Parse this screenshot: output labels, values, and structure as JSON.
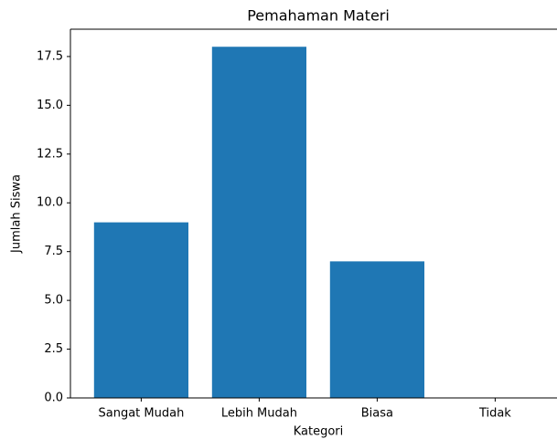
{
  "chart_data": {
    "type": "bar",
    "title": "Pemahaman Materi",
    "x_label": "Kategori",
    "y_label": "Jumlah Siswa",
    "categories": [
      "Sangat Mudah",
      "Lebih Mudah",
      "Biasa",
      "Tidak"
    ],
    "values": [
      9,
      18,
      7,
      0
    ],
    "color": "#1f77b4",
    "ylim": [
      0,
      18.9
    ],
    "yticks": [
      {
        "value": 0,
        "label": "0.0"
      },
      2.5,
      {
        "value": 5,
        "label": "5.0"
      },
      7.5,
      {
        "value": 10,
        "label": "10.0"
      },
      12.5,
      {
        "value": 15,
        "label": "15.0"
      },
      17.5
    ]
  }
}
